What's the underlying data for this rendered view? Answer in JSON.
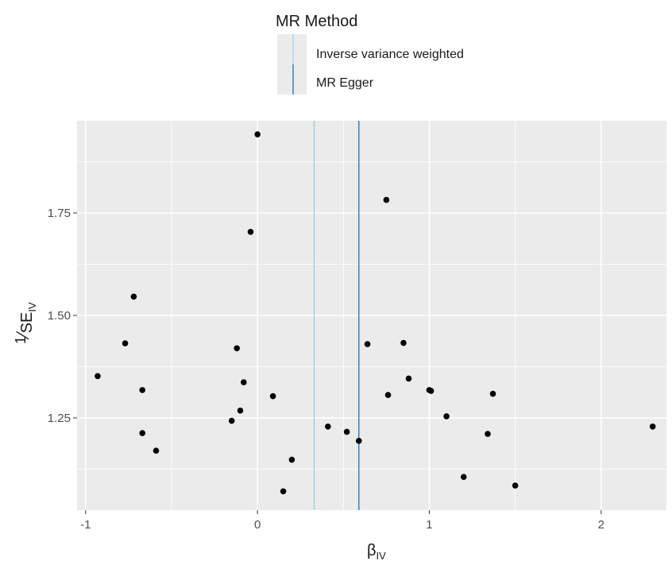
{
  "chart_data": {
    "type": "scatter",
    "title": "",
    "xlabel": {
      "main": "β",
      "sub": "IV"
    },
    "ylabel": {
      "numerator": "1",
      "denominator": "SE",
      "sub": "IV"
    },
    "xlim": [
      -1.05,
      2.38
    ],
    "ylim": [
      1.025,
      1.975
    ],
    "xticks": [
      -1,
      0,
      1,
      2
    ],
    "xtick_labels": [
      "-1",
      "0",
      "1",
      "2"
    ],
    "yticks": [
      1.25,
      1.5,
      1.75
    ],
    "ytick_labels": [
      "1.25",
      "1.50",
      "1.75"
    ],
    "grid": true,
    "legend": {
      "title": "MR Method",
      "placement": "top",
      "entries": [
        {
          "label": "Inverse variance weighted",
          "color": "#9ecae1"
        },
        {
          "label": "MR Egger",
          "color": "#2171b5"
        }
      ]
    },
    "vlines": [
      {
        "method": "Inverse variance weighted",
        "x": 0.33,
        "color": "#9ecae1"
      },
      {
        "method": "MR Egger",
        "x": 0.59,
        "color": "#2171b5"
      }
    ],
    "points": [
      {
        "x": -0.93,
        "y": 1.352
      },
      {
        "x": -0.77,
        "y": 1.432
      },
      {
        "x": -0.72,
        "y": 1.546
      },
      {
        "x": -0.67,
        "y": 1.318
      },
      {
        "x": -0.67,
        "y": 1.213
      },
      {
        "x": -0.59,
        "y": 1.17
      },
      {
        "x": -0.15,
        "y": 1.243
      },
      {
        "x": -0.12,
        "y": 1.42
      },
      {
        "x": -0.1,
        "y": 1.268
      },
      {
        "x": -0.08,
        "y": 1.337
      },
      {
        "x": -0.04,
        "y": 1.704
      },
      {
        "x": 0.0,
        "y": 1.942
      },
      {
        "x": 0.09,
        "y": 1.303
      },
      {
        "x": 0.15,
        "y": 1.071
      },
      {
        "x": 0.2,
        "y": 1.148
      },
      {
        "x": 0.41,
        "y": 1.229
      },
      {
        "x": 0.52,
        "y": 1.216
      },
      {
        "x": 0.59,
        "y": 1.194
      },
      {
        "x": 0.64,
        "y": 1.43
      },
      {
        "x": 0.75,
        "y": 1.782
      },
      {
        "x": 0.76,
        "y": 1.306
      },
      {
        "x": 0.85,
        "y": 1.433
      },
      {
        "x": 0.88,
        "y": 1.346
      },
      {
        "x": 1.0,
        "y": 1.318
      },
      {
        "x": 1.01,
        "y": 1.316
      },
      {
        "x": 1.1,
        "y": 1.254
      },
      {
        "x": 1.2,
        "y": 1.106
      },
      {
        "x": 1.34,
        "y": 1.211
      },
      {
        "x": 1.37,
        "y": 1.309
      },
      {
        "x": 1.5,
        "y": 1.085
      },
      {
        "x": 2.3,
        "y": 1.229
      }
    ]
  }
}
